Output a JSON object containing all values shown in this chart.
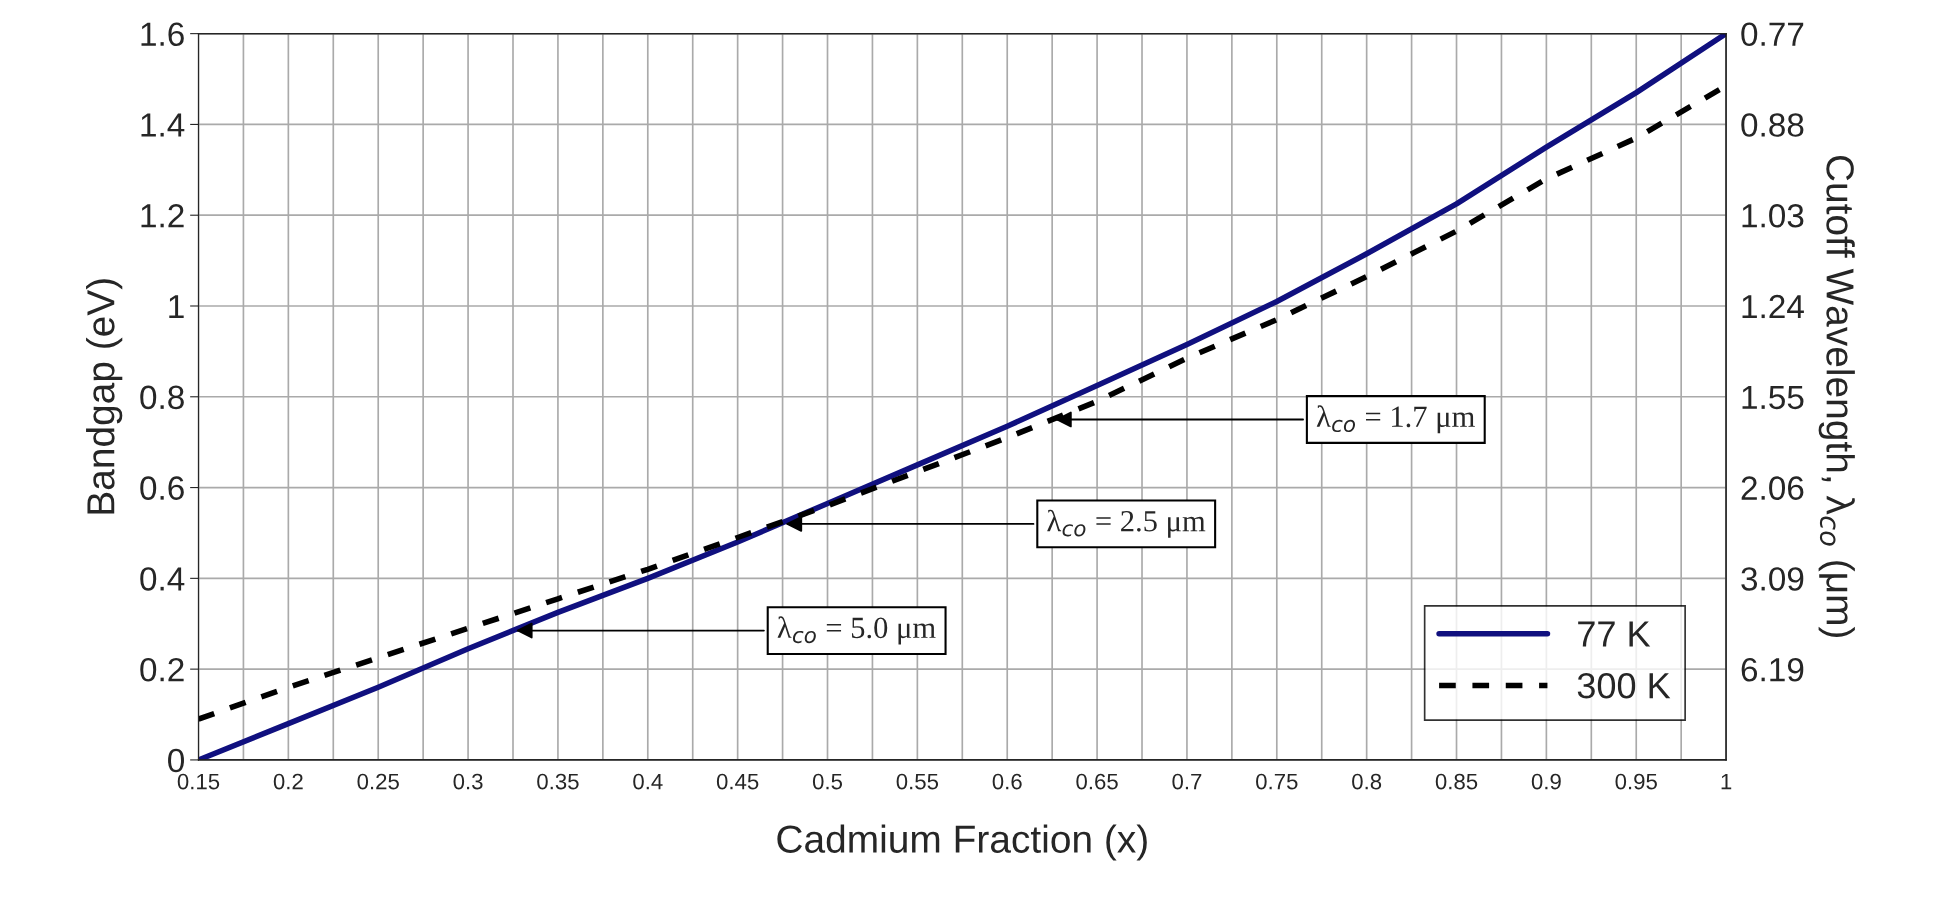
{
  "chart_data": {
    "type": "line",
    "xlabel": "Cadmium Fraction (x)",
    "ylabel": "Bandgap (eV)",
    "y2label": "Cutoff Wavelength, λ$_{co}$ (μm)",
    "x": [
      0.15,
      0.2,
      0.25,
      0.3,
      0.35,
      0.4,
      0.45,
      0.5,
      0.55,
      0.6,
      0.65,
      0.7,
      0.75,
      0.8,
      0.85,
      0.9,
      0.95,
      1.0
    ],
    "series": [
      {
        "name": "77 K",
        "color": "#10107f",
        "line_style": "solid",
        "values": [
          0.0,
          0.08,
          0.16,
          0.245,
          0.325,
          0.4,
          0.48,
          0.565,
          0.65,
          0.735,
          0.825,
          0.915,
          1.01,
          1.115,
          1.225,
          1.35,
          1.47,
          1.6
        ]
      },
      {
        "name": "300 K",
        "color": "#000000",
        "line_style": "dashed",
        "values": [
          0.09,
          0.16,
          0.225,
          0.29,
          0.355,
          0.42,
          0.49,
          0.56,
          0.635,
          0.71,
          0.79,
          0.885,
          0.97,
          1.065,
          1.165,
          1.28,
          1.37,
          1.485
        ]
      }
    ],
    "xlim": [
      0.15,
      1.0
    ],
    "xticks": [
      0.15,
      {
        "value": 0.175,
        "label": null
      },
      0.2,
      {
        "value": 0.225,
        "label": null
      },
      0.25,
      {
        "value": 0.275,
        "label": null
      },
      0.3,
      {
        "value": 0.325,
        "label": null
      },
      0.35,
      {
        "value": 0.375,
        "label": null
      },
      0.4,
      {
        "value": 0.425,
        "label": null
      },
      0.45,
      {
        "value": 0.475,
        "label": null
      },
      0.5,
      {
        "value": 0.525,
        "label": null
      },
      0.55,
      {
        "value": 0.575,
        "label": null
      },
      0.6,
      {
        "value": 0.625,
        "label": null
      },
      0.65,
      {
        "value": 0.675,
        "label": null
      },
      0.7,
      {
        "value": 0.725,
        "label": null
      },
      0.75,
      {
        "value": 0.775,
        "label": null
      },
      0.8,
      {
        "value": 0.825,
        "label": null
      },
      0.85,
      {
        "value": 0.875,
        "label": null
      },
      0.9,
      {
        "value": 0.925,
        "label": null
      },
      0.95,
      {
        "value": 0.975,
        "label": null
      },
      1
    ],
    "ylim": [
      0,
      1.6
    ],
    "yticks": [
      0,
      0.2,
      0.4,
      0.6,
      0.8,
      1,
      1.2,
      1.4,
      1.6
    ],
    "y2_categories": [
      "0.77",
      "0.88",
      "1.03",
      "1.24",
      "1.55",
      "2.06",
      "3.09",
      "6.19",
      null
    ],
    "annotations": [
      {
        "text": "λ$_{co}$ = 1.7 μm",
        "x": 0.625,
        "y": 0.75
      },
      {
        "text": "λ$_{co}$ = 2.5 μm",
        "x": 0.475,
        "y": 0.52
      },
      {
        "text": "λ$_{co}$ = 5.0 μm",
        "x": 0.325,
        "y": 0.285
      }
    ],
    "grid": true,
    "legend": "bottom right",
    "marker": "none"
  }
}
